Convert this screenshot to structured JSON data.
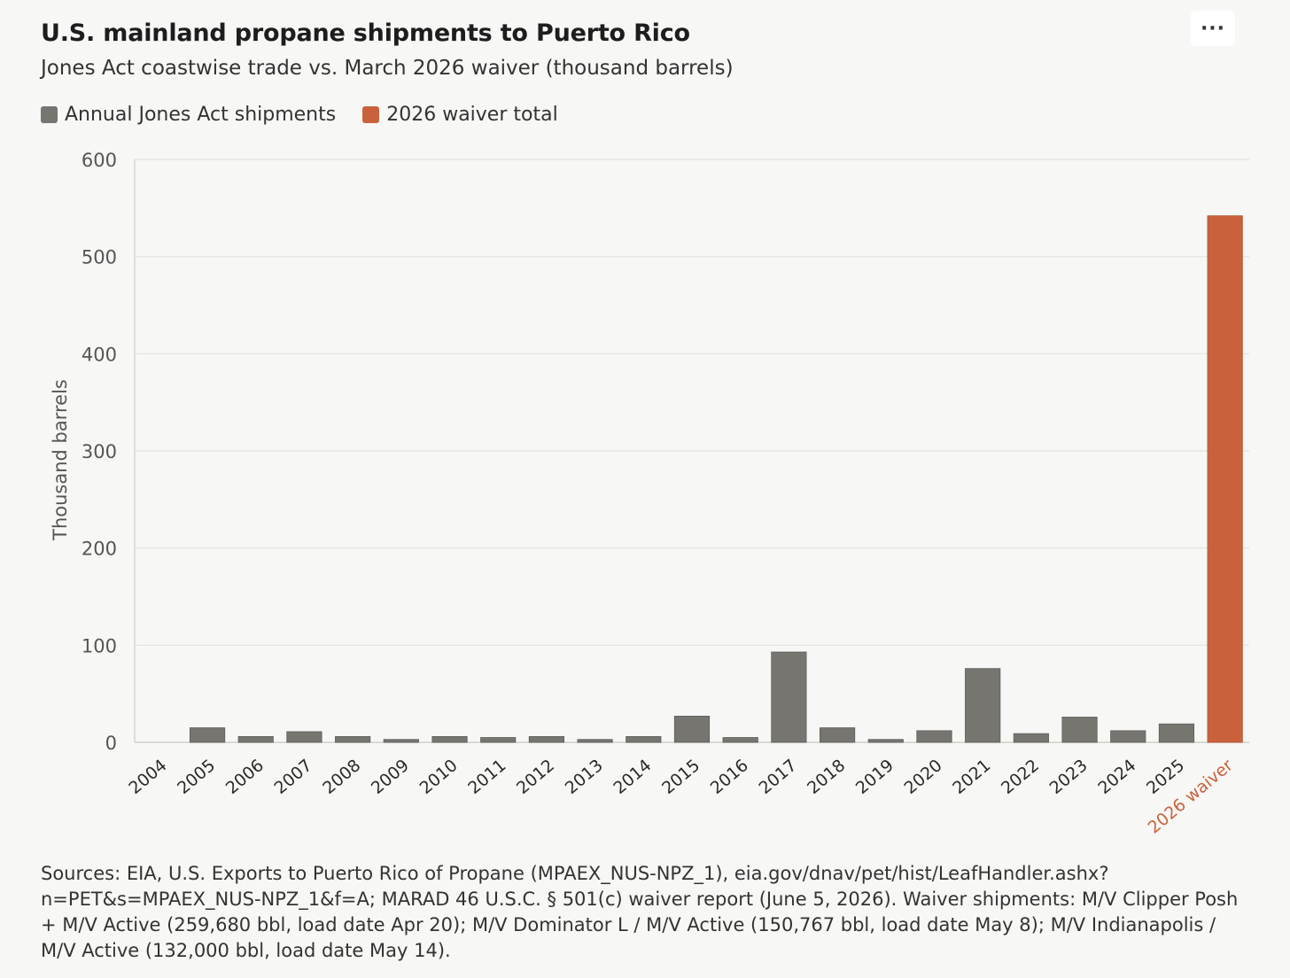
{
  "header": {
    "title": "U.S. mainland propane shipments to Puerto Rico",
    "subtitle": "Jones Act coastwise trade vs. March 2026 waiver (thousand barrels)",
    "menu_label": "···"
  },
  "legend": [
    {
      "label": "Annual Jones Act shipments",
      "color": "#767570"
    },
    {
      "label": "2026 waiver total",
      "color": "#c9623c"
    }
  ],
  "colors": {
    "jones_act": "#767570",
    "waiver": "#c9623c",
    "grid": "#e3e3df",
    "axis_text": "#555555"
  },
  "chart_data": {
    "type": "bar",
    "ylabel": "Thousand barrels",
    "xlabel": "",
    "ylim": [
      0,
      600
    ],
    "yticks": [
      0,
      100,
      200,
      300,
      400,
      500,
      600
    ],
    "categories": [
      "2004",
      "2005",
      "2006",
      "2007",
      "2008",
      "2009",
      "2010",
      "2011",
      "2012",
      "2013",
      "2014",
      "2015",
      "2016",
      "2017",
      "2018",
      "2019",
      "2020",
      "2021",
      "2022",
      "2023",
      "2024",
      "2025",
      "2026 waiver"
    ],
    "values": [
      0,
      15,
      6,
      11,
      6,
      3,
      6,
      5,
      6,
      3,
      6,
      27,
      5,
      93,
      15,
      3,
      12,
      76,
      9,
      26,
      12,
      19,
      542
    ],
    "series_index": [
      0,
      0,
      0,
      0,
      0,
      0,
      0,
      0,
      0,
      0,
      0,
      0,
      0,
      0,
      0,
      0,
      0,
      0,
      0,
      0,
      0,
      0,
      1
    ],
    "grid": true,
    "legend_position": "top-left"
  },
  "source_note": "Sources: EIA, U.S. Exports to Puerto Rico of Propane (MPAEX_NUS-NPZ_1), eia.gov/dnav/pet/hist/LeafHandler.ashx?n=PET&s=MPAEX_NUS-NPZ_1&f=A; MARAD 46 U.S.C. § 501(c) waiver report (June 5, 2026). Waiver shipments: M/V Clipper Posh + M/V Active (259,680 bbl, load date Apr 20); M/V Dominator L / M/V Active (150,767 bbl, load date May 8); M/V Indianapolis / M/V Active (132,000 bbl, load date May 14)."
}
